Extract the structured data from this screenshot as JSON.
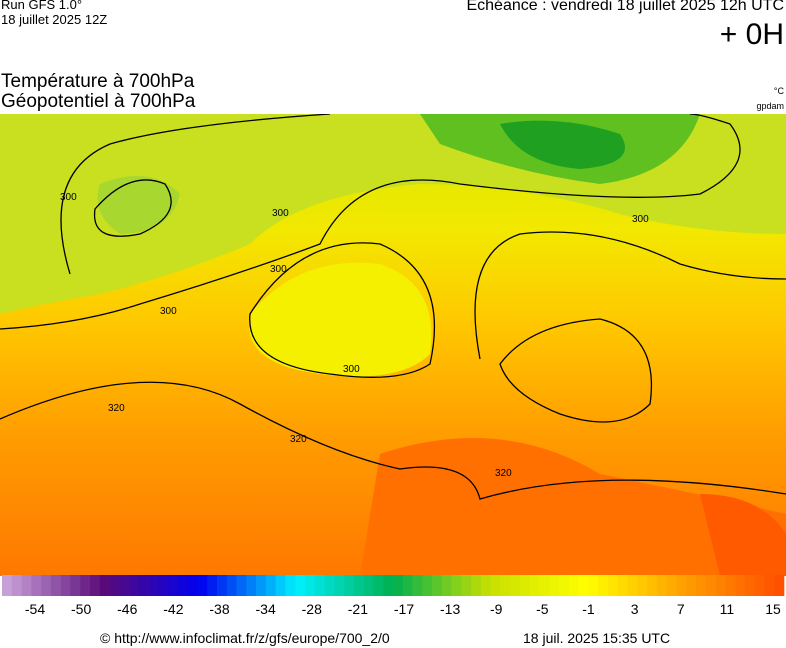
{
  "header": {
    "run": "Run GFS 1.0°",
    "run_date": "18 juillet 2025 12Z",
    "echeance": "Echéance : vendredi 18 juillet 2025 12h UTC",
    "offset": "+ 0H"
  },
  "title": {
    "line1": "Température à 700hPa",
    "line2": "Géopotentiel à 700hPa",
    "unit_temp": "°C",
    "unit_geo": "gpdam"
  },
  "map": {
    "contour_labels": [
      "300",
      "300",
      "300",
      "300",
      "300",
      "300",
      "320",
      "320",
      "320"
    ]
  },
  "colorbar": {
    "ticks": [
      -54,
      -50,
      -46,
      -42,
      -38,
      -34,
      -28,
      -21,
      -17,
      -13,
      -9,
      -5,
      -1,
      3,
      7,
      11,
      15
    ],
    "colors": [
      "#c8a0d8",
      "#5a0a78",
      "#0000f0",
      "#00f0ff",
      "#00b050",
      "#c8e000",
      "#ffff00",
      "#ffa000",
      "#ff5000"
    ]
  },
  "footer": {
    "source": "© http://www.infoclimat.fr/z/gfs/europe/700_2/0",
    "timestamp": "18 juil. 2025 15:35 UTC"
  }
}
